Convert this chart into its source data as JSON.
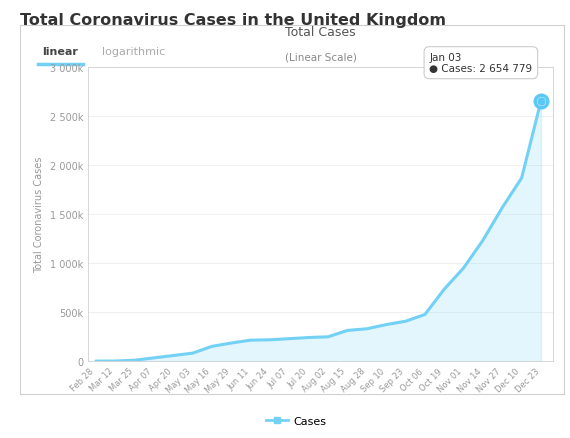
{
  "title": "Total Coronavirus Cases in the United Kingdom",
  "chart_title": "Total Cases",
  "chart_subtitle": "(Linear Scale)",
  "ylabel": "Total Coronavirus Cases",
  "tab_linear": "linear",
  "tab_log": "logarithmic",
  "legend_label": "Cases",
  "tooltip_date": "Jan 03",
  "tooltip_cases": "2 654 779",
  "line_color": "#74d1f6",
  "fill_color": "#74d1f6",
  "tooltip_dot_color": "#5bc8f5",
  "background_color": "#ffffff",
  "plot_bg_color": "#ffffff",
  "border_color": "#d0d0d0",
  "title_color": "#333333",
  "axis_label_color": "#999999",
  "grid_color": "#f0f0f0",
  "yticks": [
    0,
    500000,
    1000000,
    1500000,
    2000000,
    2500000,
    3000000
  ],
  "ytick_labels": [
    "0",
    "500k",
    "1 000k",
    "1 500k",
    "2 000k",
    "2 500k",
    "3 000k"
  ],
  "xtick_labels": [
    "Feb 28",
    "Mar 12",
    "Mar 25",
    "Apr 07",
    "Apr 20",
    "May 03",
    "May 16",
    "May 29",
    "Jun 11",
    "Jun 24",
    "Jul 07",
    "Jul 20",
    "Aug 02",
    "Aug 15",
    "Aug 28",
    "Sep 10",
    "Sep 23",
    "Oct 06",
    "Oct 19",
    "Nov 01",
    "Nov 14",
    "Nov 27",
    "Dec 10",
    "Dec 23"
  ],
  "data_x": [
    0,
    13,
    26,
    39,
    52,
    65,
    78,
    91,
    104,
    117,
    130,
    143,
    156,
    169,
    182,
    195,
    208,
    221,
    234,
    247,
    260,
    273,
    286,
    299
  ],
  "data_y": [
    590,
    1543,
    9529,
    33718,
    57733,
    82080,
    151472,
    185233,
    214583,
    218188,
    229705,
    241415,
    248770,
    313798,
    330368,
    373163,
    407451,
    476213,
    734098,
    951000,
    1233294,
    1567371,
    1868711,
    2654779
  ]
}
